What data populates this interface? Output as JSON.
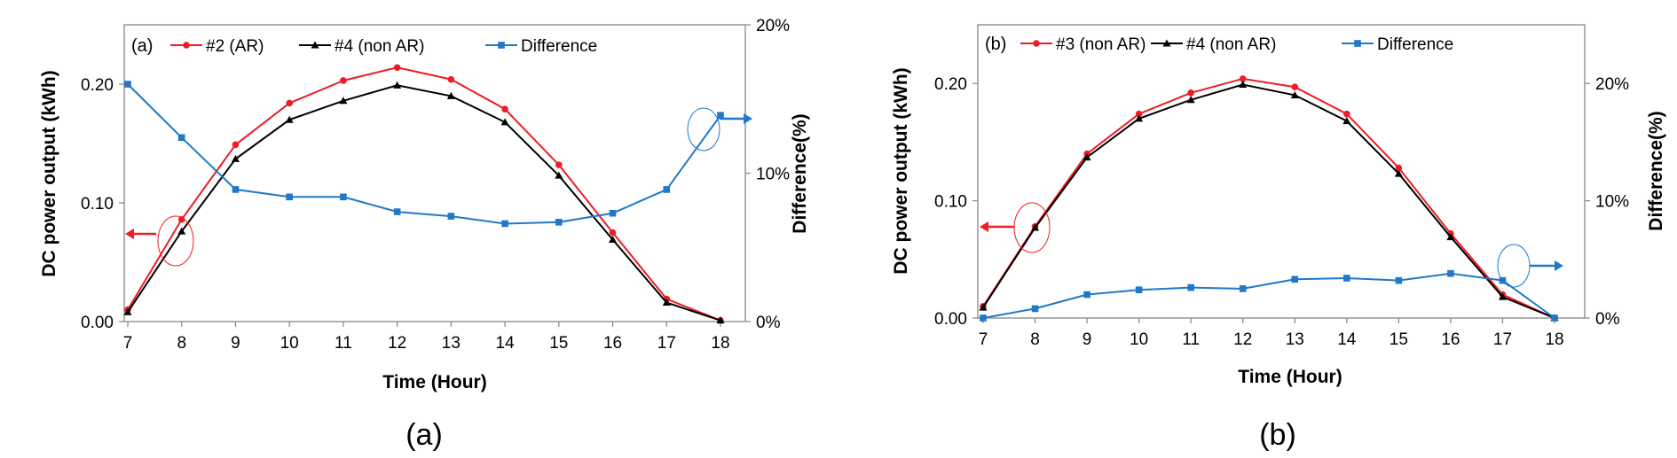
{
  "chart_data": [
    {
      "type": "line",
      "panel_label": "(a)",
      "caption": "(a)",
      "categories": [
        7,
        8,
        9,
        10,
        11,
        12,
        13,
        14,
        15,
        16,
        17,
        18
      ],
      "category_labels": [
        "7",
        "8",
        "9",
        "10",
        "11",
        "12",
        "13",
        "14",
        "15",
        "16",
        "17",
        "18"
      ],
      "xlabel": "Time (Hour)",
      "ylabel": "DC power output (kWh)",
      "ylabel2": "Difference(%)",
      "ylim": [
        0,
        0.25
      ],
      "ylim2": [
        0,
        20
      ],
      "yticks": [
        0.0,
        0.1,
        0.2
      ],
      "ytick_labels": [
        "0.00",
        "0.10",
        "0.20"
      ],
      "yticks2": [
        0,
        10,
        20
      ],
      "ytick2_labels": [
        "0%",
        "10%",
        "20%"
      ],
      "series": [
        {
          "name": "#2 (AR)",
          "axis": "left",
          "color": "#ee1c25",
          "marker": "circle",
          "values": [
            0.01,
            0.086,
            0.149,
            0.184,
            0.203,
            0.214,
            0.204,
            0.179,
            0.132,
            0.075,
            0.019,
            0.001
          ]
        },
        {
          "name": "#4 (non AR)",
          "axis": "left",
          "color": "#000000",
          "marker": "triangle",
          "values": [
            0.008,
            0.076,
            0.137,
            0.17,
            0.186,
            0.199,
            0.19,
            0.168,
            0.123,
            0.069,
            0.016,
            0.001
          ]
        },
        {
          "name": "Difference",
          "axis": "right",
          "color": "#1f78c8",
          "marker": "square",
          "values": [
            16.0,
            12.4,
            8.9,
            8.4,
            8.4,
            7.4,
            7.1,
            6.6,
            6.7,
            7.3,
            8.9,
            13.9
          ]
        }
      ],
      "annotations": [
        {
          "type": "ellipse-arrow",
          "target": "left-axis",
          "color": "#ee1c25",
          "at": [
            8,
            0.075
          ]
        },
        {
          "type": "ellipse-arrow",
          "target": "right-axis",
          "color": "#1f78c8",
          "at": [
            18,
            13.9
          ]
        }
      ]
    },
    {
      "type": "line",
      "panel_label": "(b)",
      "caption": "(b)",
      "categories": [
        7,
        8,
        9,
        10,
        11,
        12,
        13,
        14,
        15,
        16,
        17,
        18
      ],
      "category_labels": [
        "7",
        "8",
        "9",
        "10",
        "11",
        "12",
        "13",
        "14",
        "15",
        "16",
        "17",
        "18"
      ],
      "xlabel": "Time (Hour)",
      "ylabel": "DC power output (kWh)",
      "ylabel2": "Difference(%)",
      "ylim": [
        0,
        0.25
      ],
      "ylim2": [
        0,
        25
      ],
      "yticks": [
        0.0,
        0.1,
        0.2
      ],
      "ytick_labels": [
        "0.00",
        "0.10",
        "0.20"
      ],
      "yticks2": [
        0,
        10,
        20
      ],
      "ytick2_labels": [
        "0%",
        "10%",
        "20%"
      ],
      "series": [
        {
          "name": "#3 (non AR)",
          "axis": "left",
          "color": "#ee1c25",
          "marker": "circle",
          "values": [
            0.01,
            0.078,
            0.14,
            0.174,
            0.192,
            0.204,
            0.197,
            0.174,
            0.128,
            0.072,
            0.02,
            0.0
          ]
        },
        {
          "name": "#4 (non AR)",
          "axis": "left",
          "color": "#000000",
          "marker": "triangle",
          "values": [
            0.009,
            0.077,
            0.137,
            0.17,
            0.186,
            0.199,
            0.19,
            0.168,
            0.123,
            0.069,
            0.018,
            0.0
          ]
        },
        {
          "name": "Difference",
          "axis": "right",
          "color": "#1f78c8",
          "marker": "square",
          "values": [
            0.0,
            0.8,
            2.0,
            2.4,
            2.6,
            2.5,
            3.3,
            3.4,
            3.2,
            3.8,
            3.2,
            0.0
          ]
        }
      ],
      "annotations": [
        {
          "type": "ellipse-arrow",
          "target": "left-axis",
          "color": "#ee1c25",
          "at": [
            8,
            0.077
          ]
        },
        {
          "type": "ellipse-arrow",
          "target": "right-axis",
          "color": "#1f78c8",
          "at": [
            17,
            4.2
          ]
        }
      ]
    }
  ]
}
